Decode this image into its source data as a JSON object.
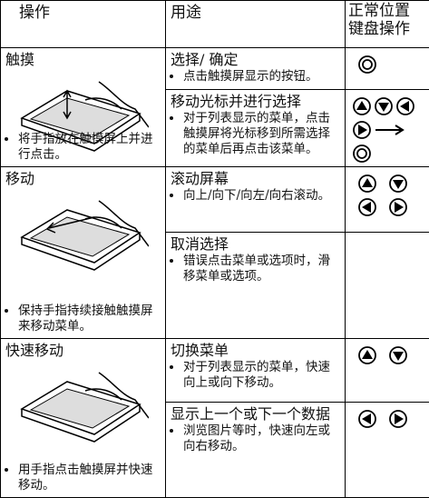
{
  "header": {
    "operation": "操作",
    "use": "用途",
    "keys": [
      "正常位置",
      "键盘操作"
    ]
  },
  "rows": [
    {
      "operation": "触摸",
      "note": "将手指放在触摸屏上并进行点击。",
      "uses": [
        {
          "title": "选择/ 确定",
          "note": "点击触摸屏显示的按钮。"
        },
        {
          "title": "移动光标并进行选择",
          "note": "对于列表显示的菜单，点击触摸屏将光标移到所需选择的菜单后再点击该菜单。"
        }
      ]
    },
    {
      "operation": "移动",
      "note": "保持手指持续接触触摸屏来移动菜单。",
      "uses": [
        {
          "title": "滚动屏幕",
          "note": "向上/向下/向左/向右滚动。"
        },
        {
          "title": "取消选择",
          "note": "错误点击菜单或选项时，滑移菜单或选项。"
        }
      ]
    },
    {
      "operation": "快速移动",
      "note": "用手指点击触摸屏并快速移动。",
      "uses": [
        {
          "title": "切换菜单",
          "note": "对于列表显示的菜单，快速向上或向下移动。"
        },
        {
          "title": "显示上一个或下一个数据",
          "note": "浏览图片等时，快速向左或向右移动。"
        }
      ]
    }
  ]
}
